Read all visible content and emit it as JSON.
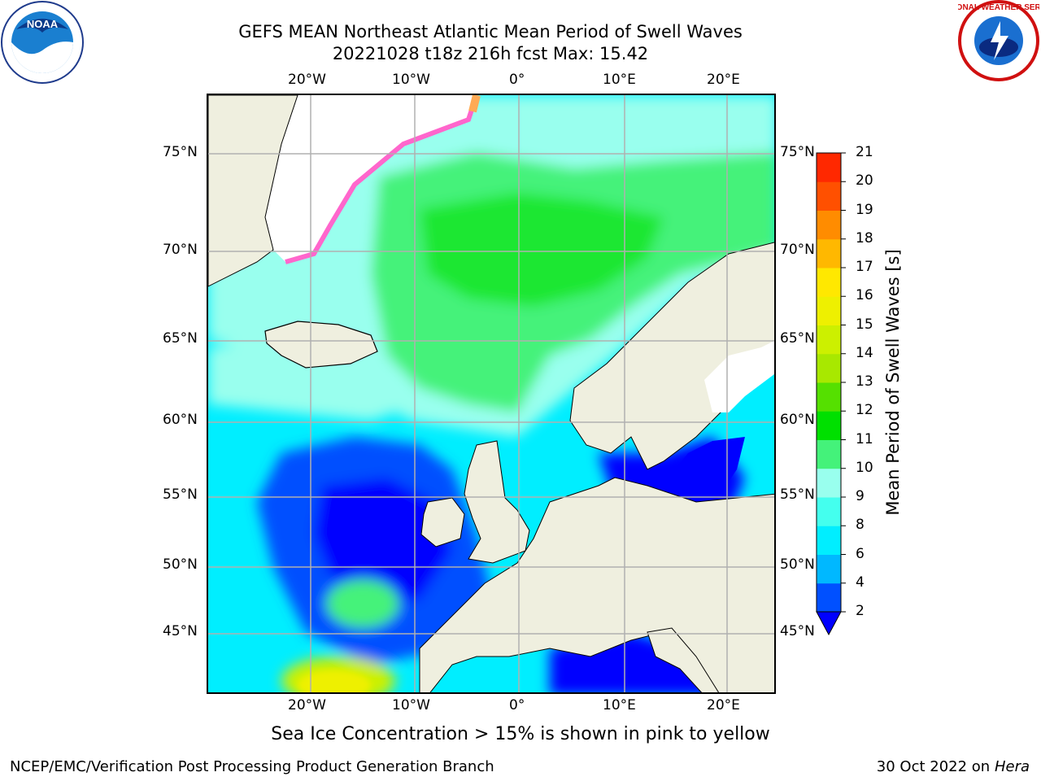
{
  "title_line1": "GEFS MEAN Northeast Atlantic Mean Period of Swell Waves",
  "title_line2": "20221028 t18z 216h fcst   Max: 15.42",
  "logos": {
    "left": "noaa-logo",
    "right": "nws-logo",
    "left_text": "NOAA",
    "right_text": "NATIONAL WEATHER SERVICE"
  },
  "lon_ticks": [
    "20°W",
    "10°W",
    "0°",
    "10°E",
    "20°E"
  ],
  "lat_ticks": [
    "75°N",
    "70°N",
    "65°N",
    "60°N",
    "55°N",
    "50°N",
    "45°N"
  ],
  "colorbar": {
    "label": "Mean Period of Swell Waves [s]",
    "ticks": [
      "2",
      "4",
      "6",
      "8",
      "9",
      "10",
      "11",
      "12",
      "13",
      "14",
      "15",
      "16",
      "17",
      "18",
      "19",
      "20",
      "21"
    ],
    "colors": [
      "#0050ff",
      "#00b8ff",
      "#00eeff",
      "#44ffee",
      "#99ffee",
      "#44f27a",
      "#00e000",
      "#55e000",
      "#a8e800",
      "#ccf000",
      "#eef000",
      "#ffe800",
      "#ffb800",
      "#ff8c00",
      "#ff5000",
      "#ff2800",
      "#ff0000"
    ],
    "under_color": "#0000ff"
  },
  "colors": {
    "land": "#efefdf",
    "ice": "#ffffff",
    "grid": "#b0b0b0"
  },
  "footer": {
    "caption": "Sea Ice Concentration > 15% is shown in pink to yellow",
    "left": "NCEP/EMC/Verification Post Processing Product Generation Branch",
    "right_date": "30 Oct 2022 on",
    "right_machine": "Hera"
  }
}
